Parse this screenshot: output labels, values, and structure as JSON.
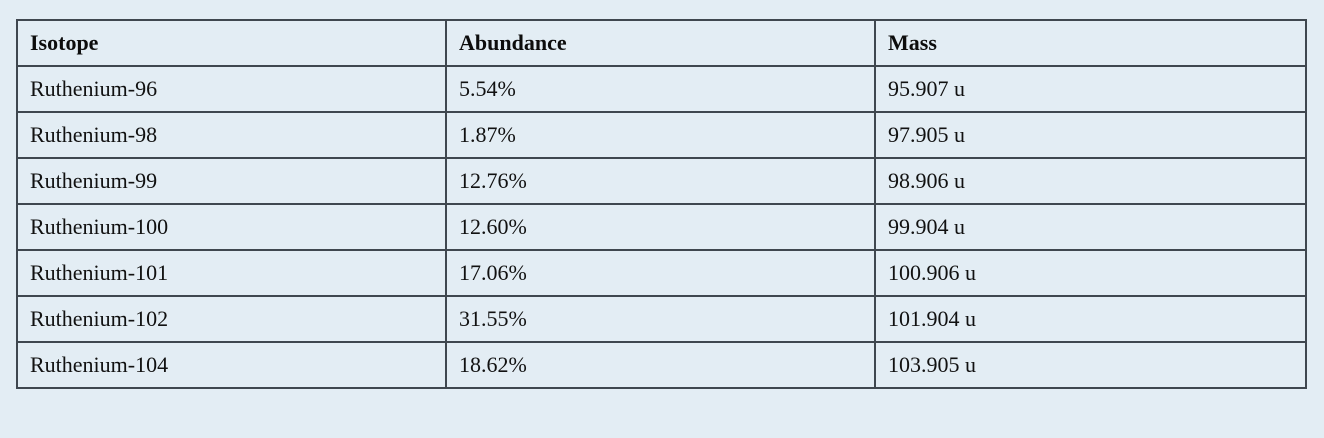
{
  "table": {
    "headers": [
      "Isotope",
      "Abundance",
      "Mass"
    ],
    "rows": [
      [
        "Ruthenium-96",
        "5.54%",
        "95.907 u"
      ],
      [
        "Ruthenium-98",
        "1.87%",
        "97.905 u"
      ],
      [
        "Ruthenium-99",
        "12.76%",
        "98.906 u"
      ],
      [
        "Ruthenium-100",
        "12.60%",
        "99.904 u"
      ],
      [
        "Ruthenium-101",
        "17.06%",
        "100.906 u"
      ],
      [
        "Ruthenium-102",
        "31.55%",
        "101.904 u"
      ],
      [
        "Ruthenium-104",
        "18.62%",
        "103.905 u"
      ]
    ]
  },
  "colors": {
    "background": "#e3edf4",
    "border": "#3f474f",
    "text": "#111111"
  }
}
